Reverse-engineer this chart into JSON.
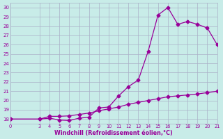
{
  "xlabel": "Windchill (Refroidissement éolien,°C)",
  "bg_color": "#c8ece8",
  "grid_color": "#aab0c8",
  "line_color": "#990099",
  "x_ticks": [
    0,
    3,
    4,
    5,
    6,
    7,
    8,
    9,
    10,
    11,
    12,
    13,
    14,
    15,
    16,
    17,
    18,
    19,
    20,
    21
  ],
  "y_ticks": [
    18,
    19,
    20,
    21,
    22,
    23,
    24,
    25,
    26,
    27,
    28,
    29,
    30
  ],
  "xlim": [
    0,
    21
  ],
  "ylim": [
    17.5,
    30.5
  ],
  "ref_x": [
    0,
    3,
    4,
    5,
    6,
    7,
    8,
    9,
    10,
    11,
    12,
    13,
    14,
    15,
    16,
    17,
    18,
    19,
    20,
    21
  ],
  "ref_y": [
    18.0,
    18.0,
    18.3,
    18.3,
    18.35,
    18.5,
    18.65,
    18.9,
    19.1,
    19.3,
    19.6,
    19.8,
    20.0,
    20.2,
    20.4,
    20.5,
    20.6,
    20.7,
    20.85,
    21.0
  ],
  "curve_x": [
    0,
    3,
    4,
    5,
    6,
    7,
    8,
    9,
    10,
    11,
    12,
    13,
    14,
    15,
    16,
    17,
    18,
    19,
    20,
    21
  ],
  "curve_y": [
    18.0,
    18.0,
    18.1,
    17.9,
    17.85,
    18.1,
    18.2,
    19.2,
    19.3,
    20.5,
    21.5,
    22.2,
    25.3,
    29.2,
    30.0,
    28.2,
    28.5,
    28.2,
    27.8,
    26.0
  ]
}
